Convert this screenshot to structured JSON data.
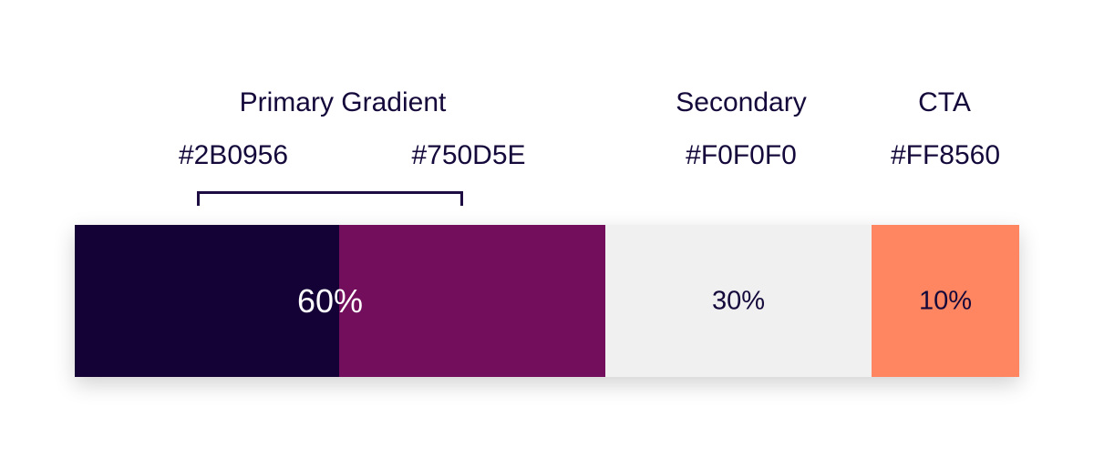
{
  "groups": {
    "primary": {
      "title": "Primary Gradient",
      "start_hex": "#2B0956",
      "end_hex": "#750D5E",
      "percent": "60%",
      "share": 60
    },
    "secondary": {
      "title": "Secondary",
      "hex": "#F0F0F0",
      "percent": "30%",
      "share": 30
    },
    "cta": {
      "title": "CTA",
      "hex": "#FF8560",
      "percent": "10%",
      "share": 10
    }
  },
  "colors": {
    "primary_dark": "#140236",
    "primary_purple": "#720E5B",
    "secondary": "#F0F0F0",
    "cta": "#FF8660",
    "text": "#14093A"
  }
}
